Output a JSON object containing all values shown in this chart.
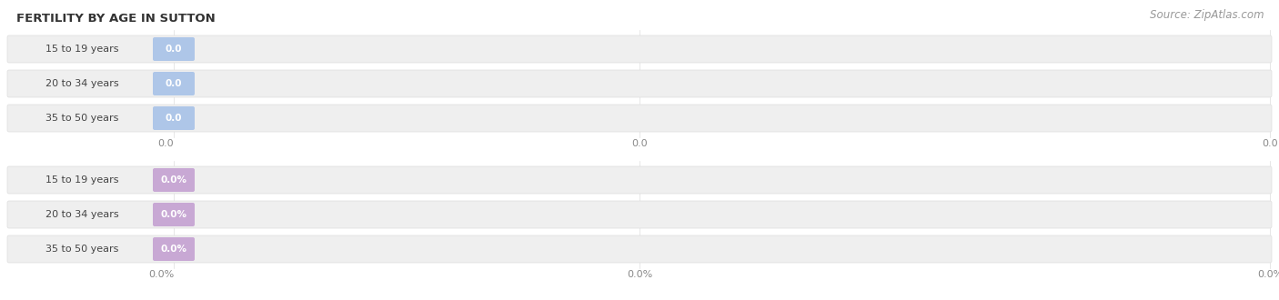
{
  "title": "FERTILITY BY AGE IN SUTTON",
  "source": "Source: ZipAtlas.com",
  "top_group": {
    "categories": [
      "15 to 19 years",
      "20 to 34 years",
      "35 to 50 years"
    ],
    "values": [
      0.0,
      0.0,
      0.0
    ],
    "bar_color": "#b8cce8",
    "badge_color": "#aec6e8",
    "label_text_color": "#444444",
    "track_color": "#efefef",
    "tick_format": "0.0",
    "axis_label_color": "#888888",
    "value_labels": [
      "0.0",
      "0.0",
      "0.0"
    ]
  },
  "bottom_group": {
    "categories": [
      "15 to 19 years",
      "20 to 34 years",
      "35 to 50 years"
    ],
    "values": [
      0.0,
      0.0,
      0.0
    ],
    "bar_color": "#c8a8d4",
    "badge_color": "#c8a8d4",
    "label_text_color": "#444444",
    "track_color": "#efefef",
    "tick_format": "0.0%",
    "axis_label_color": "#888888",
    "value_labels": [
      "0.0%",
      "0.0%",
      "0.0%"
    ]
  },
  "bg_color": "#ffffff",
  "title_color": "#333333",
  "title_fontsize": 9.5,
  "source_color": "#999999",
  "source_fontsize": 8.5,
  "category_text_color": "#444444",
  "category_fontsize": 8.0,
  "value_fontsize": 7.5,
  "tick_fontsize": 8.0,
  "badge_text_color": "#ffffff"
}
